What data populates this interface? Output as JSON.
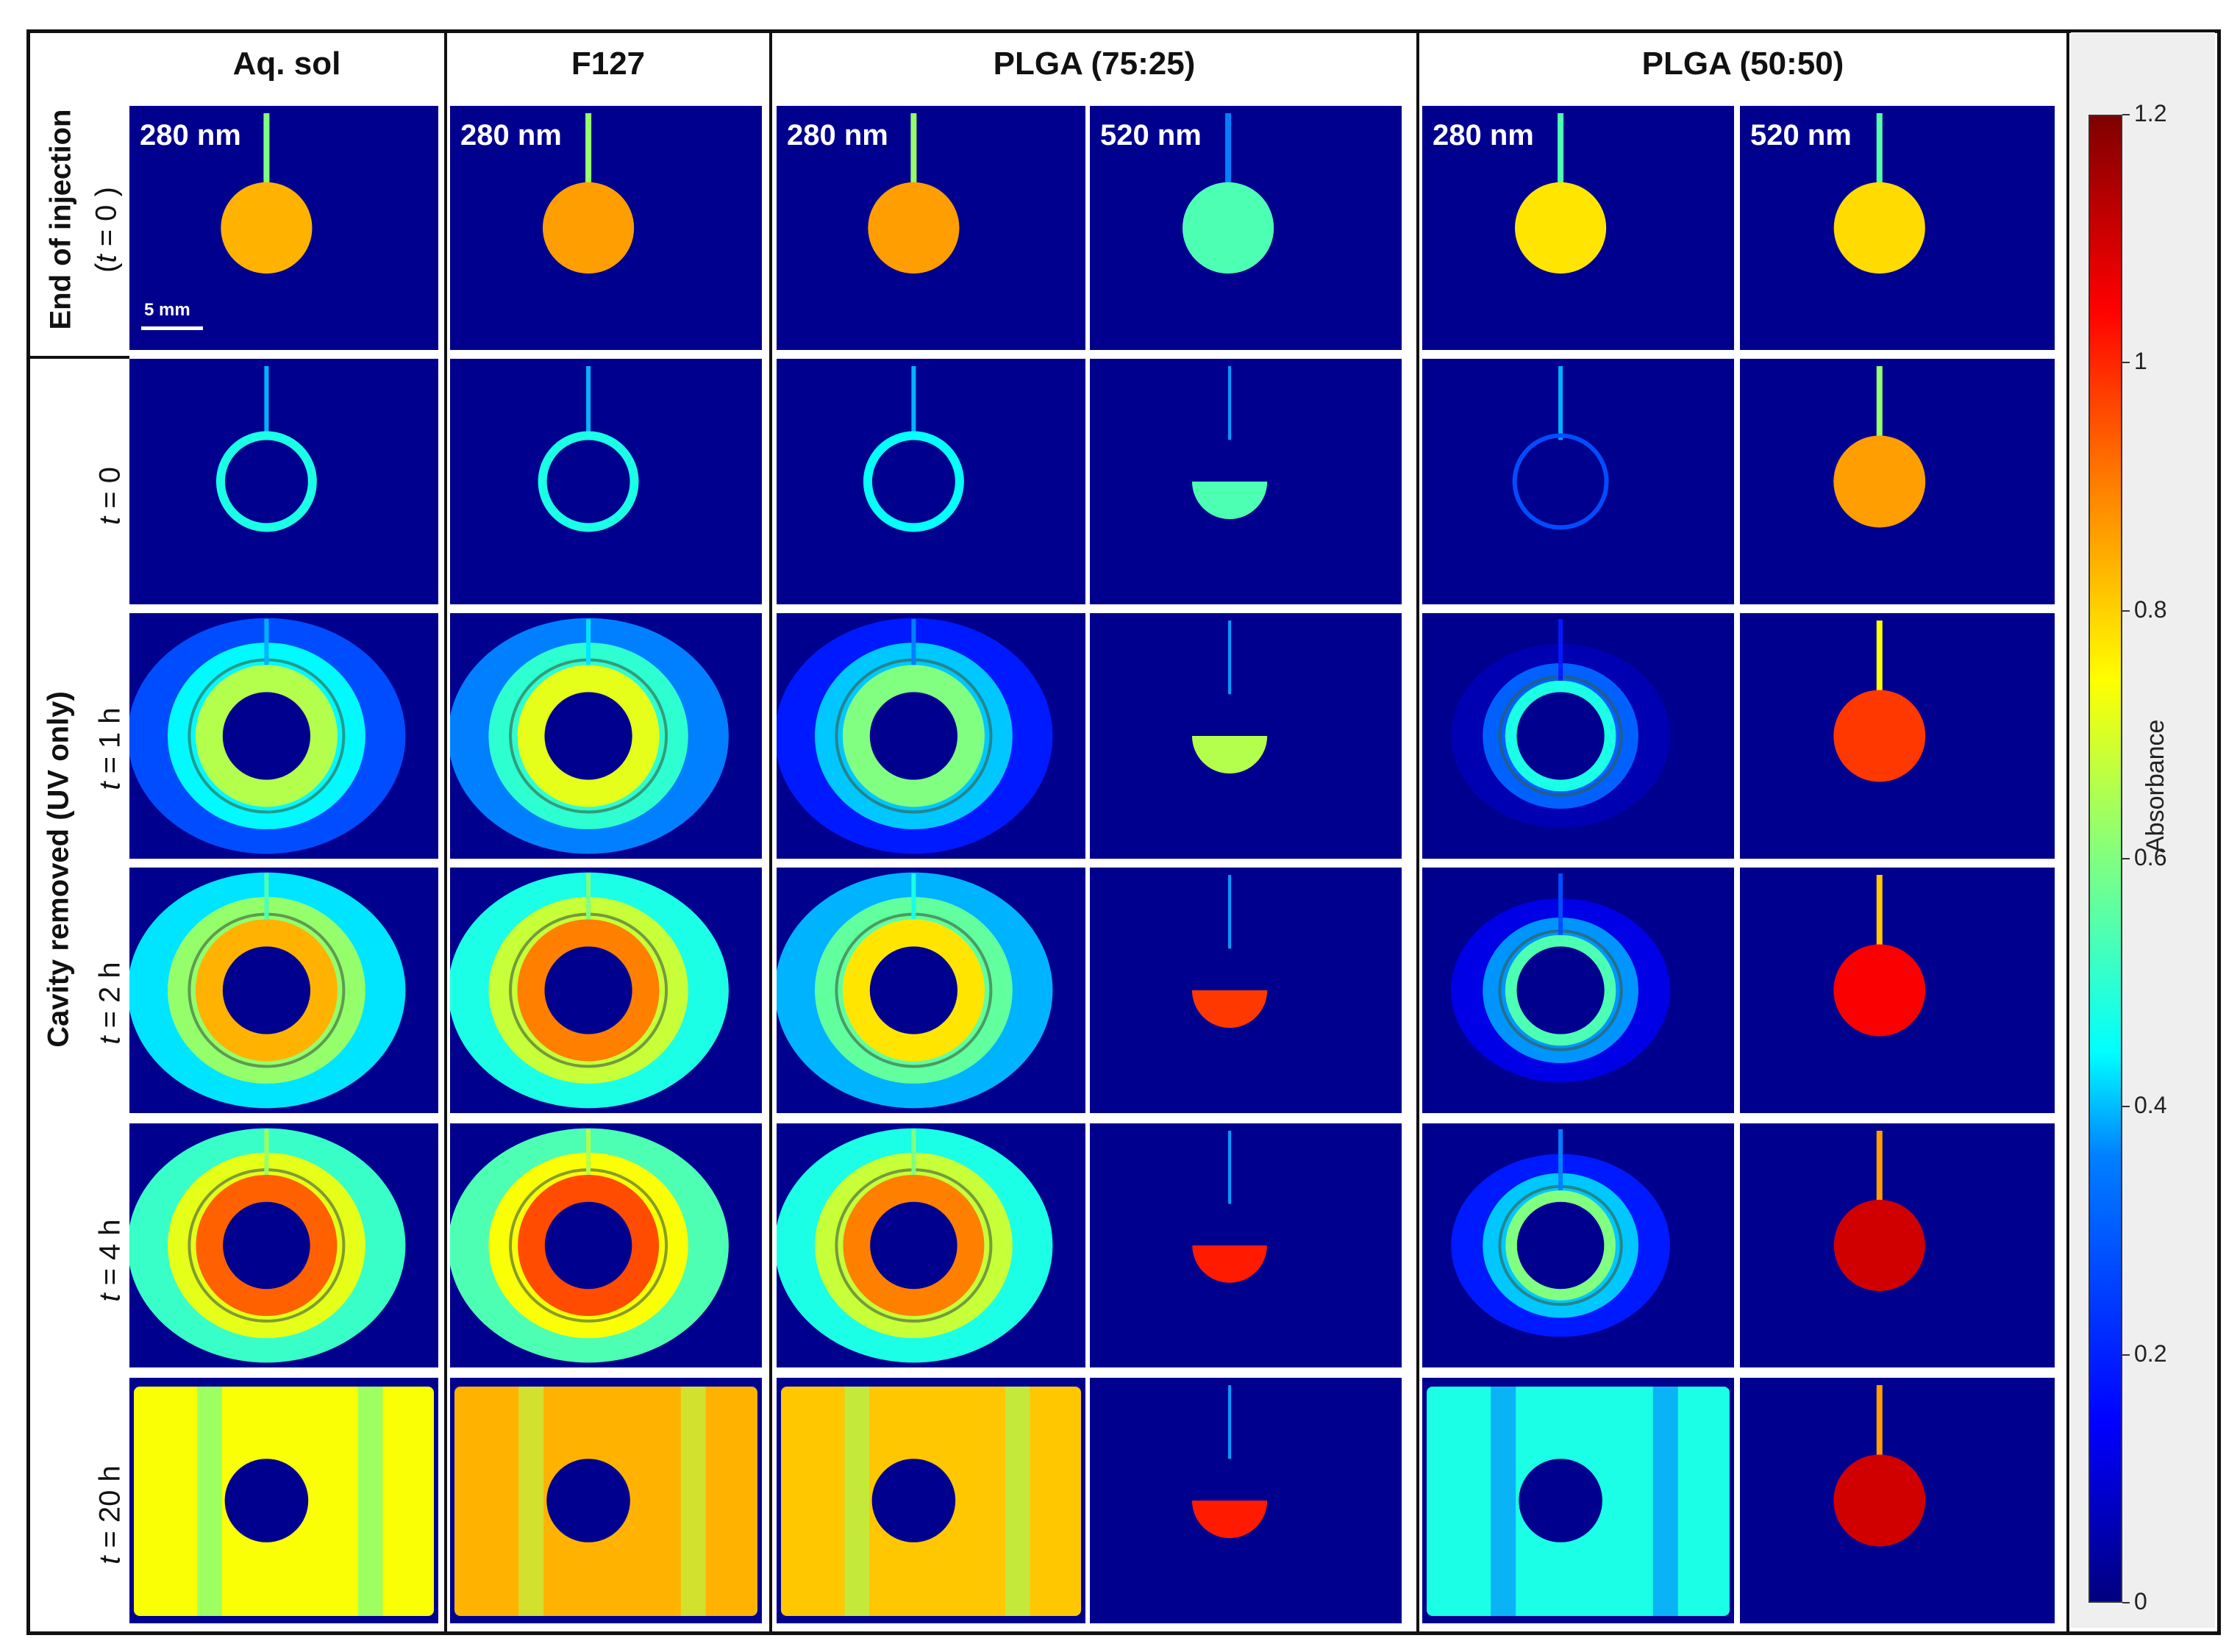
{
  "columns": [
    "Aq. sol",
    "F127",
    "PLGA (75:25)",
    "PLGA (50:50)"
  ],
  "wavelengths": {
    "w280": "280 nm",
    "w520": "520 nm"
  },
  "group_labels": {
    "injection": "End of injection",
    "cavity": "Cavity removed (UV only)"
  },
  "injection_time": {
    "prefix": "(",
    "var": "t",
    "rest": " = 0 )"
  },
  "rows": [
    {
      "var": "t",
      "rest": " = 0"
    },
    {
      "var": "t",
      "rest": " = 1 h"
    },
    {
      "var": "t",
      "rest": " = 2 h"
    },
    {
      "var": "t",
      "rest": " = 4 h"
    },
    {
      "var": "t",
      "rest": " = 20 h"
    }
  ],
  "scale_bar": "5 mm",
  "colorbar": {
    "title": "Absorbance",
    "ticks": [
      "0",
      "0.2",
      "0.4",
      "0.6",
      "0.8",
      "1",
      "1.2"
    ],
    "colors": [
      "#00008f",
      "#0000ff",
      "#00ffff",
      "#ffff00",
      "#ff0000",
      "#7f0000"
    ]
  }
}
